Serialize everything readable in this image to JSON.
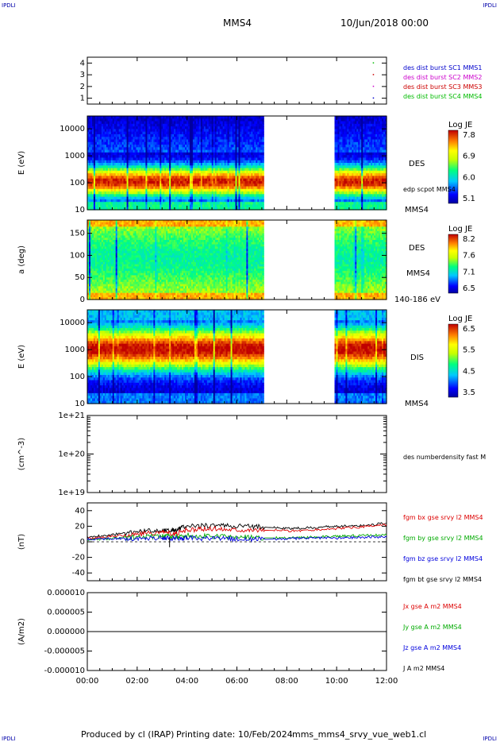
{
  "header": {
    "corner_tl": "IPDLI",
    "corner_tr": "IPDLI",
    "corner_bl": "IPDLI",
    "corner_br": "IPDLI",
    "spacecraft": "MMS4",
    "date": "10/Jun/2018 00:00"
  },
  "footer": {
    "produced_by": "Produced by cl (IRAP)",
    "printing_date": "Printing date: 10/Feb/2024",
    "file": "mms_mms4_srvy_vue_web1.cl"
  },
  "colors": {
    "mms1": "#0000cc",
    "mms2": "#cc00cc",
    "mms3": "#cc0000",
    "mms4": "#00bb00",
    "bx": "#dd0000",
    "by": "#00aa00",
    "bz": "#0000dd",
    "bt": "#000000"
  },
  "chart_data": [
    {
      "type": "scatter",
      "id": "burst",
      "ylim": [
        0.5,
        4.5
      ],
      "yticks": [
        "1",
        "2",
        "3",
        "4"
      ],
      "legend": [
        "des dist burst SC1 MMS1",
        "des dist burst SC2 MMS2",
        "des dist burst SC3 MMS3",
        "des dist burst SC4 MMS4"
      ],
      "points": [
        {
          "t": 11.45,
          "y": 1
        },
        {
          "t": 11.45,
          "y": 2
        },
        {
          "t": 11.45,
          "y": 3
        },
        {
          "t": 11.45,
          "y": 4
        }
      ]
    },
    {
      "type": "heatmap",
      "id": "des-energy",
      "ylabel": "E (eV)",
      "yticks": [
        "10",
        "100",
        "1000",
        "10000"
      ],
      "scale": "log",
      "ylim": [
        10,
        30000
      ],
      "label": "DES",
      "label2": "edp scpot MMS4",
      "label3": "MMS4",
      "colorbar": {
        "title": "Log JE",
        "ticks": [
          "7.8",
          "6.9",
          "6.0",
          "5.1"
        ]
      },
      "gap": [
        7.1,
        9.9
      ]
    },
    {
      "type": "heatmap",
      "id": "des-pitch",
      "ylabel": "a (deg)",
      "yticks": [
        "0",
        "50",
        "100",
        "150"
      ],
      "ylim": [
        0,
        180
      ],
      "label": "DES",
      "label2": "MMS4",
      "label3": "140-186 eV",
      "colorbar": {
        "title": "Log JE",
        "ticks": [
          "8.2",
          "7.6",
          "7.1",
          "6.5"
        ]
      },
      "gap": [
        7.1,
        9.9
      ]
    },
    {
      "type": "heatmap",
      "id": "dis-energy",
      "ylabel": "E (eV)",
      "yticks": [
        "10",
        "100",
        "1000",
        "10000"
      ],
      "scale": "log",
      "ylim": [
        10,
        30000
      ],
      "label": "DIS",
      "label2": "MMS4",
      "colorbar": {
        "title": "Log JE",
        "ticks": [
          "6.5",
          "5.5",
          "4.5",
          "3.5"
        ]
      },
      "gap": [
        7.1,
        9.9
      ]
    },
    {
      "type": "line",
      "id": "density",
      "ylabel": "(cm^-3)",
      "yticks": [
        "1e+19",
        "1e+20",
        "1e+21"
      ],
      "scale": "log",
      "ylim": [
        1e+19,
        1e+21
      ],
      "legend": [
        "des numberdensity fast M"
      ]
    },
    {
      "type": "line",
      "id": "bfield",
      "ylabel": "(nT)",
      "yticks": [
        "-40",
        "-20",
        "0",
        "20",
        "40"
      ],
      "ylim": [
        -50,
        50
      ],
      "legend": [
        "fgm bx gse srvy l2 MMS4",
        "fgm by gse srvy l2 MMS4",
        "fgm bz gse srvy l2 MMS4",
        "fgm bt gse srvy l2 MMS4"
      ],
      "series": [
        {
          "key": "bt",
          "t": [
            0,
            1,
            2,
            3,
            3.5,
            4,
            5,
            6,
            7,
            8,
            9,
            10,
            11,
            12
          ],
          "values": [
            6,
            9,
            13,
            15,
            15,
            20,
            21,
            20,
            19,
            17,
            18,
            20,
            21,
            24
          ]
        },
        {
          "key": "bx",
          "t": [
            0,
            1,
            2,
            3,
            3.5,
            4,
            5,
            6,
            7,
            8,
            9,
            10,
            11,
            12
          ],
          "values": [
            4,
            7,
            10,
            12,
            10,
            15,
            17,
            16,
            15,
            14,
            15,
            17,
            19,
            22
          ]
        },
        {
          "key": "by",
          "t": [
            0,
            1,
            2,
            3,
            3.5,
            4,
            5,
            6,
            7,
            8,
            9,
            10,
            11,
            12
          ],
          "values": [
            2,
            4,
            6,
            7,
            6,
            8,
            7,
            6,
            5,
            5,
            6,
            7,
            8,
            9
          ]
        },
        {
          "key": "bz",
          "t": [
            0,
            1,
            2,
            3,
            3.5,
            4,
            5,
            6,
            7,
            8,
            9,
            10,
            11,
            12
          ],
          "values": [
            3,
            4,
            4,
            5,
            4,
            5,
            4,
            4,
            3,
            4,
            5,
            5,
            6,
            6
          ]
        }
      ]
    },
    {
      "type": "line",
      "id": "current",
      "ylabel": "(A/m2)",
      "yticks": [
        "-0.000010",
        "-0.000005",
        "0.000000",
        "0.000005",
        "0.000010"
      ],
      "ylim": [
        -1e-05,
        1e-05
      ],
      "legend": [
        "Jx gse A m2 MMS4",
        "Jy gse A m2 MMS4",
        "Jz gse A m2 MMS4",
        "J A m2 MMS4"
      ],
      "legend_keys": [
        "bx",
        "by",
        "bz",
        "bt"
      ],
      "series": [
        {
          "key": "bt",
          "t": [
            0,
            12
          ],
          "values": [
            0,
            0
          ]
        }
      ]
    }
  ],
  "xaxis": {
    "range": [
      0,
      12
    ],
    "ticks": [
      "00:00",
      "02:00",
      "04:00",
      "06:00",
      "08:00",
      "10:00",
      "12:00"
    ]
  }
}
